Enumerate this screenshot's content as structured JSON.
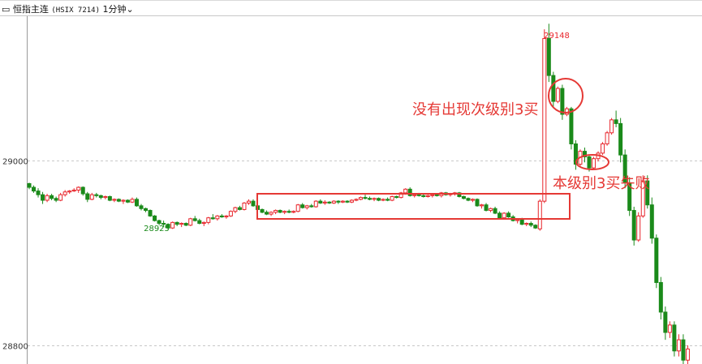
{
  "header": {
    "instrument": "恒指主连",
    "code": "(HSIX 7214)",
    "period": "1分钟",
    "dropdown_icon": "chevron-down-icon"
  },
  "annotations": {
    "no_third_buy": "没有出现次级别3买",
    "third_buy_fail": "本级别3买失败"
  },
  "colors": {
    "up": "#e8262c",
    "down": "#1a8a1a",
    "annotation": "#e53935",
    "box": "#e53935",
    "grid": "#c8c8c8"
  },
  "chart_data": {
    "type": "candlestick",
    "y_ticks": [
      29000,
      28800
    ],
    "ylim": [
      28770,
      29180
    ],
    "grid": "horizontal dashed at y ticks",
    "high_label": "29148",
    "low_label": "28925",
    "candles": [
      [
        28975,
        28976,
        28969,
        28971
      ],
      [
        28971,
        28973,
        28965,
        28967
      ],
      [
        28967,
        28970,
        28960,
        28963
      ],
      [
        28963,
        28966,
        28953,
        28957
      ],
      [
        28957,
        28964,
        28955,
        28962
      ],
      [
        28962,
        28964,
        28957,
        28959
      ],
      [
        28959,
        28961,
        28955,
        28957
      ],
      [
        28957,
        28965,
        28956,
        28963
      ],
      [
        28963,
        28968,
        28961,
        28966
      ],
      [
        28966,
        28968,
        28964,
        28967
      ],
      [
        28967,
        28970,
        28966,
        28968
      ],
      [
        28968,
        28972,
        28965,
        28971
      ],
      [
        28971,
        28972,
        28962,
        28964
      ],
      [
        28964,
        28966,
        28955,
        28958
      ],
      [
        28958,
        28965,
        28957,
        28963
      ],
      [
        28963,
        28965,
        28960,
        28962
      ],
      [
        28962,
        28963,
        28958,
        28960
      ],
      [
        28960,
        28962,
        28958,
        28961
      ],
      [
        28961,
        28962,
        28956,
        28957
      ],
      [
        28957,
        28959,
        28955,
        28958
      ],
      [
        28958,
        28959,
        28955,
        28956
      ],
      [
        28956,
        28958,
        28953,
        28957
      ],
      [
        28957,
        28958,
        28954,
        28955
      ],
      [
        28955,
        28960,
        28954,
        28958
      ],
      [
        28958,
        28960,
        28950,
        28951
      ],
      [
        28951,
        28953,
        28946,
        28948
      ],
      [
        28948,
        28949,
        28944,
        28946
      ],
      [
        28946,
        28947,
        28939,
        28940
      ],
      [
        28940,
        28941,
        28934,
        28935
      ],
      [
        28935,
        28936,
        28930,
        28932
      ],
      [
        28932,
        28935,
        28928,
        28931
      ],
      [
        28931,
        28932,
        28925,
        28927
      ],
      [
        28927,
        28934,
        28926,
        28933
      ],
      [
        28933,
        28934,
        28929,
        28931
      ],
      [
        28931,
        28933,
        28928,
        28932
      ],
      [
        28932,
        28933,
        28929,
        28930
      ],
      [
        28930,
        28938,
        28929,
        28937
      ],
      [
        28937,
        28940,
        28934,
        28935
      ],
      [
        28935,
        28937,
        28931,
        28932
      ],
      [
        28932,
        28934,
        28929,
        28933
      ],
      [
        28933,
        28939,
        28931,
        28938
      ],
      [
        28938,
        28942,
        28936,
        28937
      ],
      [
        28937,
        28941,
        28935,
        28940
      ],
      [
        28940,
        28942,
        28938,
        28939
      ],
      [
        28939,
        28941,
        28937,
        28940
      ],
      [
        28940,
        28946,
        28939,
        28945
      ],
      [
        28945,
        28950,
        28943,
        28949
      ],
      [
        28949,
        28951,
        28946,
        28947
      ],
      [
        28947,
        28955,
        28946,
        28954
      ],
      [
        28954,
        28958,
        28952,
        28956
      ],
      [
        28956,
        28958,
        28950,
        28951
      ],
      [
        28951,
        28952,
        28946,
        28947
      ],
      [
        28947,
        28948,
        28943,
        28944
      ],
      [
        28944,
        28946,
        28941,
        28942
      ],
      [
        28942,
        28945,
        28940,
        28944
      ],
      [
        28944,
        28947,
        28942,
        28946
      ],
      [
        28946,
        28947,
        28943,
        28944
      ],
      [
        28944,
        28946,
        28942,
        28945
      ],
      [
        28945,
        28947,
        28943,
        28944
      ],
      [
        28944,
        28946,
        28943,
        28945
      ],
      [
        28945,
        28953,
        28944,
        28952
      ],
      [
        28952,
        28954,
        28948,
        28949
      ],
      [
        28949,
        28952,
        28947,
        28951
      ],
      [
        28951,
        28953,
        28949,
        28950
      ],
      [
        28950,
        28957,
        28949,
        28956
      ],
      [
        28956,
        28958,
        28953,
        28954
      ],
      [
        28954,
        28957,
        28952,
        28955
      ],
      [
        28955,
        28956,
        28953,
        28954
      ],
      [
        28954,
        28957,
        28953,
        28956
      ],
      [
        28956,
        28957,
        28953,
        28955
      ],
      [
        28955,
        28957,
        28954,
        28956
      ],
      [
        28956,
        28957,
        28954,
        28955
      ],
      [
        28955,
        28958,
        28954,
        28957
      ],
      [
        28957,
        28959,
        28956,
        28958
      ],
      [
        28958,
        28961,
        28957,
        28960
      ],
      [
        28960,
        28963,
        28958,
        28959
      ],
      [
        28959,
        28961,
        28957,
        28958
      ],
      [
        28958,
        28960,
        28956,
        28959
      ],
      [
        28959,
        28960,
        28956,
        28957
      ],
      [
        28957,
        28959,
        28956,
        28958
      ],
      [
        28958,
        28960,
        28956,
        28957
      ],
      [
        28957,
        28962,
        28956,
        28961
      ],
      [
        28961,
        28962,
        28959,
        28960
      ],
      [
        28960,
        28966,
        28959,
        28965
      ],
      [
        28965,
        28970,
        28963,
        28969
      ],
      [
        28969,
        28971,
        28961,
        28962
      ],
      [
        28962,
        28964,
        28960,
        28963
      ],
      [
        28963,
        28965,
        28961,
        28962
      ],
      [
        28962,
        28964,
        28960,
        28961
      ],
      [
        28961,
        28963,
        28960,
        28962
      ],
      [
        28962,
        28964,
        28960,
        28963
      ],
      [
        28963,
        28964,
        28961,
        28962
      ],
      [
        28962,
        28966,
        28960,
        28965
      ],
      [
        28965,
        28966,
        28962,
        28963
      ],
      [
        28963,
        28965,
        28961,
        28964
      ],
      [
        28964,
        28966,
        28962,
        28965
      ],
      [
        28965,
        28966,
        28960,
        28961
      ],
      [
        28961,
        28962,
        28958,
        28959
      ],
      [
        28959,
        28960,
        28956,
        28957
      ],
      [
        28957,
        28959,
        28955,
        28958
      ],
      [
        28958,
        28959,
        28950,
        28951
      ],
      [
        28951,
        28953,
        28948,
        28952
      ],
      [
        28952,
        28954,
        28945,
        28946
      ],
      [
        28946,
        28949,
        28944,
        28948
      ],
      [
        28948,
        28950,
        28942,
        28943
      ],
      [
        28943,
        28945,
        28937,
        28938
      ],
      [
        28938,
        28944,
        28937,
        28943
      ],
      [
        28943,
        28945,
        28938,
        28939
      ],
      [
        28939,
        28941,
        28934,
        28935
      ],
      [
        28935,
        28937,
        28932,
        28936
      ],
      [
        28936,
        28938,
        28930,
        28931
      ],
      [
        28931,
        28933,
        28929,
        28932
      ],
      [
        28932,
        28934,
        28928,
        28930
      ],
      [
        28930,
        28931,
        28926,
        28927
      ],
      [
        28926,
        28958,
        28924,
        28956
      ],
      [
        28956,
        29142,
        28954,
        29132
      ],
      [
        29132,
        29148,
        29085,
        29092
      ],
      [
        29092,
        29096,
        29058,
        29064
      ],
      [
        29064,
        29080,
        29062,
        29078
      ],
      [
        29078,
        29082,
        29044,
        29050
      ],
      [
        29050,
        29058,
        29048,
        29056
      ],
      [
        29056,
        29058,
        29012,
        29018
      ],
      [
        29018,
        29022,
        28990,
        28996
      ],
      [
        28996,
        29012,
        28994,
        29010
      ],
      [
        29010,
        29014,
        28998,
        29004
      ],
      [
        29004,
        29006,
        28988,
        28992
      ],
      [
        28992,
        29004,
        28990,
        29002
      ],
      [
        29002,
        29010,
        28999,
        29008
      ],
      [
        29008,
        29020,
        29006,
        29018
      ],
      [
        29018,
        29032,
        29016,
        29030
      ],
      [
        29030,
        29046,
        29028,
        29044
      ],
      [
        29044,
        29054,
        29036,
        29040
      ],
      [
        29040,
        29046,
        28998,
        29006
      ],
      [
        29006,
        29012,
        28970,
        28976
      ],
      [
        28976,
        28982,
        28940,
        28946
      ],
      [
        28946,
        28950,
        28908,
        28914
      ],
      [
        28914,
        28944,
        28912,
        28940
      ],
      [
        28940,
        28984,
        28938,
        28978
      ],
      [
        28978,
        28984,
        28948,
        28952
      ],
      [
        28952,
        28960,
        28910,
        28916
      ],
      [
        28916,
        28920,
        28862,
        28868
      ],
      [
        28868,
        28874,
        28828,
        28836
      ],
      [
        28836,
        28842,
        28806,
        28814
      ],
      [
        28814,
        28826,
        28808,
        28822
      ],
      [
        28822,
        28826,
        28788,
        28794
      ],
      [
        28794,
        28812,
        28788,
        28806
      ],
      [
        28806,
        28812,
        28776,
        28784
      ],
      [
        28784,
        28800,
        28778,
        28796
      ]
    ]
  }
}
